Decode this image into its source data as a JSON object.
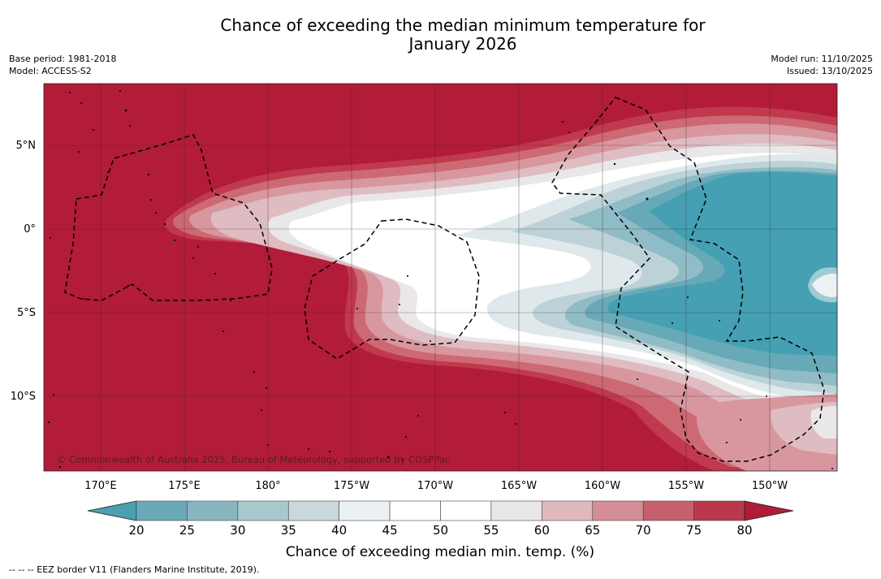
{
  "title_line1": "Chance of exceeding the median minimum temperature for",
  "title_line2": "January 2026",
  "meta": {
    "base_period": "Base period: 1981-2018",
    "model": "Model: ACCESS-S2",
    "model_run": "Model run: 11/10/2025",
    "issued": "Issued: 13/10/2025"
  },
  "map": {
    "credit": "© Commonwealth of Australia 2025, Bureau of Meteorology, supported by COSPPac",
    "lat_labels": [
      "5°N",
      "0°",
      "5°S",
      "10°S"
    ],
    "lon_labels": [
      "170°E",
      "175°E",
      "180°",
      "175°W",
      "170°W",
      "165°W",
      "160°W",
      "155°W",
      "150°W"
    ]
  },
  "colorbar": {
    "ticks": [
      "20",
      "25",
      "30",
      "35",
      "40",
      "45",
      "50",
      "55",
      "60",
      "65",
      "70",
      "75",
      "80"
    ],
    "colors": [
      "#4a9fb1",
      "#6aaab8",
      "#87b6c1",
      "#a8c8ce",
      "#c8d8dc",
      "#ecf0f2",
      "#ffffff",
      "#ffffff",
      "#e9e7e8",
      "#dfb9be",
      "#d48e96",
      "#c6606d",
      "#b9394a",
      "#b01c38"
    ],
    "label": "Chance of exceeding median min. temp. (%)"
  },
  "footer": "--  --  -- EEZ border V11 (Flanders Marine Institute, 2019).",
  "chart_data": {
    "type": "heatmap",
    "title": "Chance of exceeding the median minimum temperature for January 2026",
    "value_unit": "%",
    "color_levels": [
      20,
      25,
      30,
      35,
      40,
      45,
      50,
      55,
      60,
      65,
      70,
      75,
      80
    ],
    "lon_range": [
      "168°E",
      "147°W"
    ],
    "lat_range": [
      "8.5°N",
      "14.5°S"
    ]
  }
}
